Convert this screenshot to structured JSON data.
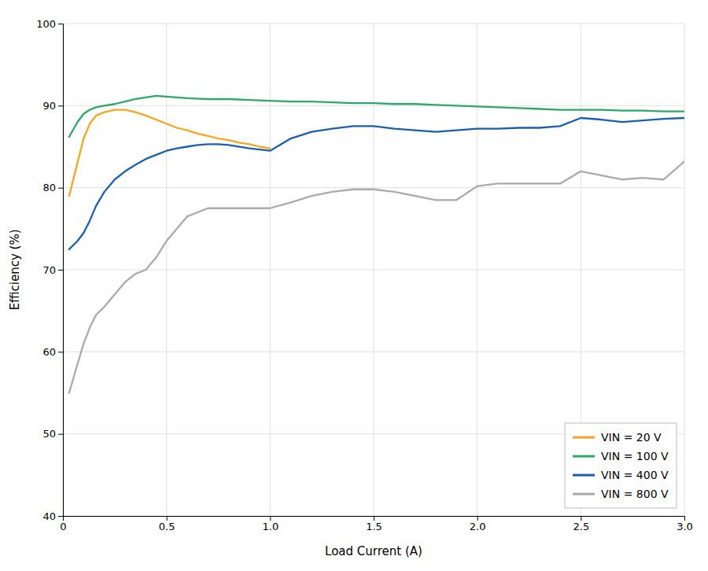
{
  "chart_data": {
    "type": "line",
    "xlabel": "Load Current (A)",
    "ylabel": "Efficiency (%)",
    "xlim": [
      0,
      3.0
    ],
    "ylim": [
      40,
      100
    ],
    "xticks": [
      0,
      0.5,
      {
        "value": 1.0,
        "label": "1.0"
      },
      1.5,
      {
        "value": 2.0,
        "label": "2.0"
      },
      2.5,
      {
        "value": 3.0,
        "label": "3.0"
      }
    ],
    "yticks": [
      40,
      50,
      60,
      70,
      80,
      90,
      100
    ],
    "grid": true,
    "legend": "lower right",
    "series": [
      {
        "name": "VIN = 20 V",
        "color": "#F5A623",
        "x": [
          0.03,
          0.07,
          0.1,
          0.13,
          0.16,
          0.2,
          0.25,
          0.3,
          0.35,
          0.4,
          0.45,
          0.5,
          0.55,
          0.6,
          0.65,
          0.7,
          0.75,
          0.8,
          0.85,
          0.9,
          0.95,
          1.0
        ],
        "values": [
          79.0,
          83.0,
          86.0,
          87.8,
          88.8,
          89.2,
          89.5,
          89.5,
          89.2,
          88.8,
          88.3,
          87.8,
          87.3,
          87.0,
          86.6,
          86.3,
          86.0,
          85.8,
          85.5,
          85.3,
          85.0,
          84.8
        ]
      },
      {
        "name": "VIN = 100 V",
        "color": "#2DA866",
        "x": [
          0.03,
          0.07,
          0.1,
          0.13,
          0.16,
          0.2,
          0.25,
          0.3,
          0.35,
          0.4,
          0.45,
          0.5,
          0.6,
          0.7,
          0.8,
          0.9,
          1.0,
          1.1,
          1.2,
          1.3,
          1.4,
          1.5,
          1.6,
          1.7,
          1.8,
          1.9,
          2.0,
          2.1,
          2.2,
          2.3,
          2.4,
          2.5,
          2.6,
          2.7,
          2.8,
          2.9,
          3.0
        ],
        "values": [
          86.2,
          88.0,
          89.0,
          89.5,
          89.8,
          90.0,
          90.2,
          90.5,
          90.8,
          91.0,
          91.2,
          91.1,
          90.9,
          90.8,
          90.8,
          90.7,
          90.6,
          90.5,
          90.5,
          90.4,
          90.3,
          90.3,
          90.2,
          90.2,
          90.1,
          90.0,
          89.9,
          89.8,
          89.7,
          89.6,
          89.5,
          89.5,
          89.5,
          89.4,
          89.4,
          89.3,
          89.3
        ]
      },
      {
        "name": "VIN = 400 V",
        "color": "#1A5FAD",
        "x": [
          0.03,
          0.07,
          0.1,
          0.13,
          0.16,
          0.2,
          0.25,
          0.3,
          0.35,
          0.4,
          0.45,
          0.5,
          0.55,
          0.6,
          0.65,
          0.7,
          0.75,
          0.8,
          0.9,
          1.0,
          1.1,
          1.2,
          1.3,
          1.4,
          1.5,
          1.6,
          1.7,
          1.8,
          1.9,
          2.0,
          2.1,
          2.2,
          2.3,
          2.4,
          2.5,
          2.6,
          2.7,
          2.8,
          2.9,
          3.0
        ],
        "values": [
          72.5,
          73.5,
          74.5,
          76.0,
          77.8,
          79.5,
          81.0,
          82.0,
          82.8,
          83.5,
          84.0,
          84.5,
          84.8,
          85.0,
          85.2,
          85.3,
          85.3,
          85.2,
          84.8,
          84.5,
          86.0,
          86.8,
          87.2,
          87.5,
          87.5,
          87.2,
          87.0,
          86.8,
          87.0,
          87.2,
          87.2,
          87.3,
          87.3,
          87.5,
          88.5,
          88.3,
          88.0,
          88.2,
          88.4,
          88.5
        ]
      },
      {
        "name": "VIN = 800 V",
        "color": "#aaaaaa",
        "x": [
          0.03,
          0.07,
          0.1,
          0.13,
          0.16,
          0.2,
          0.25,
          0.3,
          0.35,
          0.4,
          0.45,
          0.5,
          0.55,
          0.6,
          0.65,
          0.7,
          0.75,
          0.8,
          0.9,
          1.0,
          1.1,
          1.2,
          1.3,
          1.4,
          1.5,
          1.6,
          1.7,
          1.8,
          1.9,
          2.0,
          2.1,
          2.2,
          2.3,
          2.4,
          2.5,
          2.6,
          2.7,
          2.8,
          2.9,
          3.0
        ],
        "values": [
          55.0,
          58.5,
          61.0,
          63.0,
          64.5,
          65.5,
          67.0,
          68.5,
          69.5,
          70.0,
          71.5,
          73.5,
          75.0,
          76.5,
          77.0,
          77.5,
          77.5,
          77.5,
          77.5,
          77.5,
          78.2,
          79.0,
          79.5,
          79.8,
          79.8,
          79.5,
          79.0,
          78.5,
          78.5,
          80.2,
          80.5,
          80.5,
          80.5,
          80.5,
          82.0,
          81.5,
          81.0,
          81.2,
          81.0,
          83.2
        ]
      }
    ]
  }
}
